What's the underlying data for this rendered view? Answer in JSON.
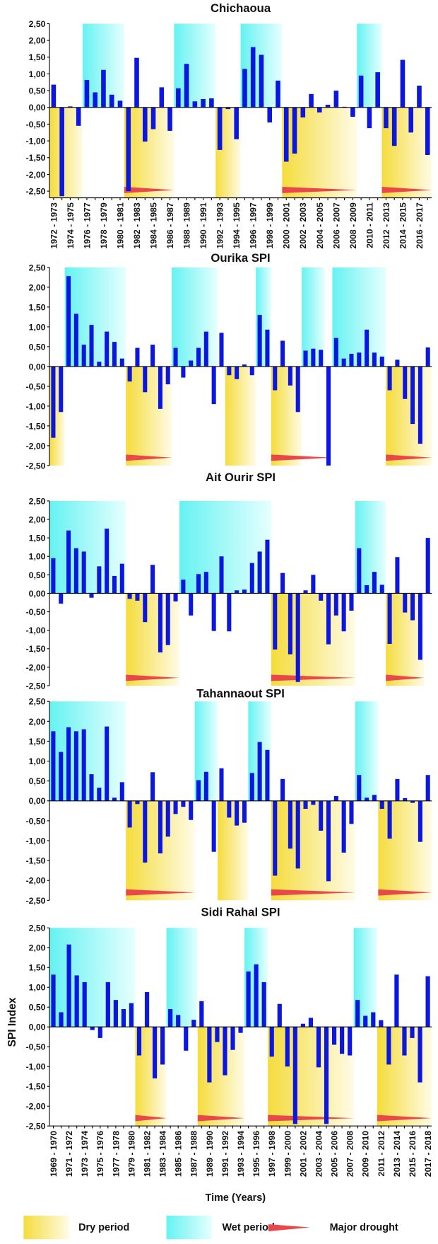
{
  "x_label": "Time (Years)",
  "y_label": "SPI Index",
  "legend": {
    "dry": "Dry period",
    "wet": "Wet period",
    "drought": "Major drought",
    "dry_color": "#f5dc3c",
    "wet_color": "#66f2f2",
    "drought_color": "#e8484a"
  },
  "chart_data": [
    {
      "type": "bar",
      "title": "Chichaoua",
      "color": "#0b16e0",
      "categories": [
        "1972 - 1973",
        null,
        "1974 - 1975",
        null,
        "1976 - 1977",
        null,
        "1978 - 1979",
        null,
        "1980 - 1981",
        null,
        "1982 - 1983",
        null,
        "1984 - 1985",
        null,
        "1986 - 1987",
        null,
        "1988 - 1989",
        null,
        "1990 - 1991",
        null,
        "1992 - 1993",
        null,
        "1994 - 1995",
        null,
        "1996 - 1997",
        null,
        "1998 - 1999",
        null,
        "2000 - 2001",
        null,
        "2002 - 2003",
        null,
        "2004 - 2005",
        null,
        "2006 - 2007",
        null,
        "2008 - 2009",
        null,
        "2010 - 2011",
        null,
        "2012 - 2013",
        null,
        "2014 - 2015",
        null,
        "2016 - 2017",
        null
      ],
      "values": [
        0.68,
        -2.65,
        0.03,
        -0.55,
        0.82,
        0.45,
        1.12,
        0.38,
        0.2,
        -2.5,
        1.48,
        -1.02,
        -0.65,
        0.6,
        -0.7,
        0.57,
        1.3,
        0.18,
        0.25,
        0.27,
        -1.27,
        -0.05,
        -0.95,
        1.15,
        1.8,
        1.57,
        -0.45,
        0.8,
        -1.62,
        -1.38,
        -0.3,
        0.4,
        -0.15,
        0.08,
        0.5,
        0.02,
        -0.28,
        0.95,
        -0.62,
        1.05,
        -0.62,
        -1.15,
        1.42,
        -0.75,
        0.65,
        -1.42
      ],
      "ylim": [
        -2.7,
        2.5
      ],
      "yticks": [
        {
          "value": 2.5,
          "label": "2,50"
        },
        {
          "value": 2,
          "label": "2,00"
        },
        {
          "value": 1.5,
          "label": "1,50"
        },
        {
          "value": 1,
          "label": "1,00"
        },
        {
          "value": 0.5,
          "label": "0,50"
        },
        {
          "value": 0,
          "label": "0,00"
        },
        {
          "value": -0.5,
          "label": "-0,50"
        },
        {
          "value": -1,
          "label": "-1,00"
        },
        {
          "value": -1.5,
          "label": "-1,50"
        },
        {
          "value": -2,
          "label": "-2,00"
        },
        {
          "value": -2.5,
          "label": "-2,50"
        }
      ],
      "wet_periods": [
        [
          4,
          8
        ],
        [
          15,
          19
        ],
        [
          23,
          27
        ],
        [
          37,
          39
        ]
      ],
      "dry_periods": [
        [
          0,
          3
        ],
        [
          9,
          14
        ],
        [
          20,
          22
        ],
        [
          28,
          36
        ],
        [
          40,
          45
        ]
      ],
      "drought_periods": [
        [
          9,
          14
        ],
        [
          28,
          36
        ],
        [
          40,
          45
        ]
      ]
    },
    {
      "type": "bar",
      "title": "Ourika SPI",
      "color": "#0b16e0",
      "values": [
        -1.8,
        -1.15,
        2.28,
        1.33,
        0.55,
        1.05,
        0.12,
        0.88,
        0.62,
        0.2,
        -0.38,
        0.47,
        -0.65,
        0.55,
        -1.07,
        -0.45,
        0.47,
        -0.28,
        0.15,
        0.47,
        0.88,
        -0.95,
        0.85,
        -0.22,
        -0.32,
        0.05,
        -0.22,
        1.3,
        0.93,
        -0.6,
        0.65,
        -0.48,
        -1.15,
        0.4,
        0.45,
        0.42,
        -2.5,
        0.72,
        0.2,
        0.32,
        0.35,
        0.93,
        0.35,
        0.25,
        -0.6,
        0.17,
        -0.82,
        -1.45,
        -1.95,
        0.48
      ],
      "ylim": [
        -2.5,
        2.5
      ],
      "yticks": [
        {
          "value": 2.5,
          "label": "2,50"
        },
        {
          "value": 2,
          "label": "2,00"
        },
        {
          "value": 1.5,
          "label": "1,50"
        },
        {
          "value": 1,
          "label": "1,00"
        },
        {
          "value": 0.5,
          "label": "0,50"
        },
        {
          "value": 0,
          "label": "0,00"
        },
        {
          "value": -0.5,
          "label": "-0,50"
        },
        {
          "value": -1,
          "label": "-1,00"
        },
        {
          "value": -1.5,
          "label": "-1,50"
        },
        {
          "value": -2,
          "label": "-2,00"
        },
        {
          "value": -2.5,
          "label": "-2,50"
        }
      ],
      "wet_periods": [
        [
          2,
          9
        ],
        [
          16,
          21
        ],
        [
          27,
          28
        ],
        [
          33,
          35
        ],
        [
          37,
          43
        ]
      ],
      "dry_periods": [
        [
          0,
          1
        ],
        [
          10,
          15
        ],
        [
          23,
          26
        ],
        [
          29,
          32
        ],
        [
          44,
          49
        ]
      ],
      "drought_periods": [
        [
          10,
          15
        ],
        [
          29,
          36
        ],
        [
          44,
          49
        ]
      ]
    },
    {
      "type": "bar",
      "title": "Ait Ourir SPI",
      "color": "#0b16e0",
      "values": [
        0.95,
        -0.28,
        1.7,
        1.22,
        1.13,
        -0.12,
        0.73,
        1.75,
        0.47,
        0.8,
        -0.15,
        -0.2,
        -0.78,
        0.77,
        -1.6,
        -1.4,
        -0.22,
        0.37,
        -0.6,
        0.52,
        0.58,
        -1.02,
        1.0,
        -1.03,
        0.08,
        0.1,
        0.82,
        1.13,
        1.45,
        -1.52,
        0.55,
        -1.65,
        -2.4,
        0.08,
        0.5,
        -0.2,
        -1.38,
        -0.6,
        -1.03,
        -0.47,
        1.22,
        0.22,
        0.58,
        0.23,
        -1.37,
        0.98,
        -0.52,
        -0.73,
        -1.8,
        1.5
      ],
      "ylim": [
        -2.5,
        2.5
      ],
      "yticks": [
        {
          "value": 2.5,
          "label": "2,50"
        },
        {
          "value": 2,
          "label": "2,00"
        },
        {
          "value": 1.5,
          "label": "1,50"
        },
        {
          "value": 1,
          "label": "1,00"
        },
        {
          "value": 0.5,
          "label": "0,50"
        },
        {
          "value": 0,
          "label": "0,00"
        },
        {
          "value": -0.5,
          "label": "-0,50"
        },
        {
          "value": -1,
          "label": "-1,00"
        },
        {
          "value": -1.5,
          "label": "-1,50"
        },
        {
          "value": -2,
          "label": "-2,00"
        },
        {
          "value": -2.5,
          "label": "-2,50"
        }
      ],
      "wet_periods": [
        [
          0,
          9
        ],
        [
          17,
          28
        ],
        [
          40,
          43
        ]
      ],
      "dry_periods": [
        [
          10,
          16
        ],
        [
          29,
          39
        ],
        [
          44,
          48
        ]
      ],
      "drought_periods": [
        [
          10,
          16
        ],
        [
          29,
          39
        ],
        [
          44,
          48
        ]
      ]
    },
    {
      "type": "bar",
      "title": "Tahannaout SPI",
      "color": "#0b16e0",
      "values": [
        1.75,
        1.23,
        1.85,
        1.75,
        1.8,
        0.67,
        0.33,
        1.87,
        0.08,
        0.47,
        -0.67,
        -0.08,
        -1.55,
        0.72,
        -1.32,
        -0.9,
        -0.33,
        -0.15,
        -0.48,
        0.52,
        0.73,
        -1.28,
        0.82,
        -0.42,
        -0.62,
        -0.55,
        0.7,
        1.48,
        1.28,
        -1.88,
        0.55,
        -1.2,
        -1.7,
        -0.2,
        -0.1,
        -0.75,
        -2.02,
        0.12,
        -1.3,
        -0.58,
        0.65,
        0.08,
        0.15,
        -0.2,
        -0.95,
        0.55,
        0.07,
        -0.05,
        -1.03,
        0.65
      ],
      "ylim": [
        -2.5,
        2.5
      ],
      "yticks": [
        {
          "value": 2.5,
          "label": "2,50"
        },
        {
          "value": 2,
          "label": "2,00"
        },
        {
          "value": 1.5,
          "label": "1,50"
        },
        {
          "value": 1,
          "label": "1,00"
        },
        {
          "value": 0.5,
          "label": "0,50"
        },
        {
          "value": 0,
          "label": "0,00"
        },
        {
          "value": -0.5,
          "label": "-0,50"
        },
        {
          "value": -1,
          "label": "-1,00"
        },
        {
          "value": -1.5,
          "label": "-1,50"
        },
        {
          "value": -2,
          "label": "-2,00"
        },
        {
          "value": -2.5,
          "label": "-2,50"
        }
      ],
      "wet_periods": [
        [
          0,
          9
        ],
        [
          19,
          21
        ],
        [
          26,
          28
        ],
        [
          40,
          42
        ]
      ],
      "dry_periods": [
        [
          10,
          18
        ],
        [
          22,
          25
        ],
        [
          29,
          39
        ],
        [
          43,
          49
        ]
      ],
      "drought_periods": [
        [
          10,
          18
        ],
        [
          29,
          39
        ],
        [
          43,
          49
        ]
      ]
    },
    {
      "type": "bar",
      "title": "Sidi Rahal SPI",
      "color": "#0b16e0",
      "categories": [
        "1969 - 1970",
        null,
        "1971 - 1972",
        null,
        "1973 - 1974",
        null,
        "1975 - 1976",
        null,
        "1977 - 1978",
        null,
        "1979 - 1980",
        null,
        "1981 - 1982",
        null,
        "1983 - 1984",
        null,
        "1985 - 1986",
        null,
        "1987 - 1988",
        null,
        "1989 - 1990",
        null,
        "1991 - 1992",
        null,
        "1993 - 1994",
        null,
        "1995 - 1996",
        null,
        "1997 - 1998",
        null,
        "1999 - 2000",
        null,
        "2001 - 2002",
        null,
        "2003 - 2004",
        null,
        "2005 - 2006",
        null,
        "2007 - 2008",
        null,
        "2009 - 2010",
        null,
        "2011 - 2012",
        null,
        "2013 - 2014",
        null,
        "2015 - 2016",
        null,
        "2017 - 2018"
      ],
      "values": [
        1.32,
        0.37,
        2.08,
        1.3,
        1.13,
        -0.08,
        -0.28,
        1.13,
        0.68,
        0.45,
        0.6,
        -0.72,
        0.88,
        -1.3,
        -0.95,
        0.45,
        0.3,
        -0.6,
        0.18,
        0.65,
        -1.4,
        -0.38,
        -1.22,
        -0.58,
        -0.15,
        1.4,
        1.58,
        1.13,
        -0.75,
        0.58,
        -1.0,
        -2.45,
        0.08,
        0.23,
        -1.02,
        -2.45,
        -0.45,
        -0.68,
        -0.72,
        0.68,
        0.28,
        0.37,
        0.17,
        -0.95,
        1.32,
        -0.72,
        -0.28,
        -1.4,
        1.28
      ],
      "ylim": [
        -2.5,
        2.5
      ],
      "yticks": [
        {
          "value": 2.5,
          "label": "2,50"
        },
        {
          "value": 2,
          "label": "2,00"
        },
        {
          "value": 1.5,
          "label": "1,50"
        },
        {
          "value": 1,
          "label": "1,00"
        },
        {
          "value": 0.5,
          "label": "0,50"
        },
        {
          "value": 0,
          "label": "0,00"
        },
        {
          "value": -0.5,
          "label": "-0,50"
        },
        {
          "value": -1,
          "label": "-1,00"
        },
        {
          "value": -1.5,
          "label": "-1,50"
        },
        {
          "value": -2,
          "label": "-2,00"
        },
        {
          "value": -2.5,
          "label": "-2,50"
        }
      ],
      "wet_periods": [
        [
          0,
          10
        ],
        [
          15,
          18
        ],
        [
          25,
          27
        ],
        [
          39,
          41
        ]
      ],
      "dry_periods": [
        [
          11,
          14
        ],
        [
          19,
          24
        ],
        [
          28,
          38
        ],
        [
          42,
          48
        ]
      ],
      "drought_periods": [
        [
          11,
          14
        ],
        [
          19,
          24
        ],
        [
          28,
          38
        ],
        [
          42,
          48
        ]
      ]
    }
  ]
}
